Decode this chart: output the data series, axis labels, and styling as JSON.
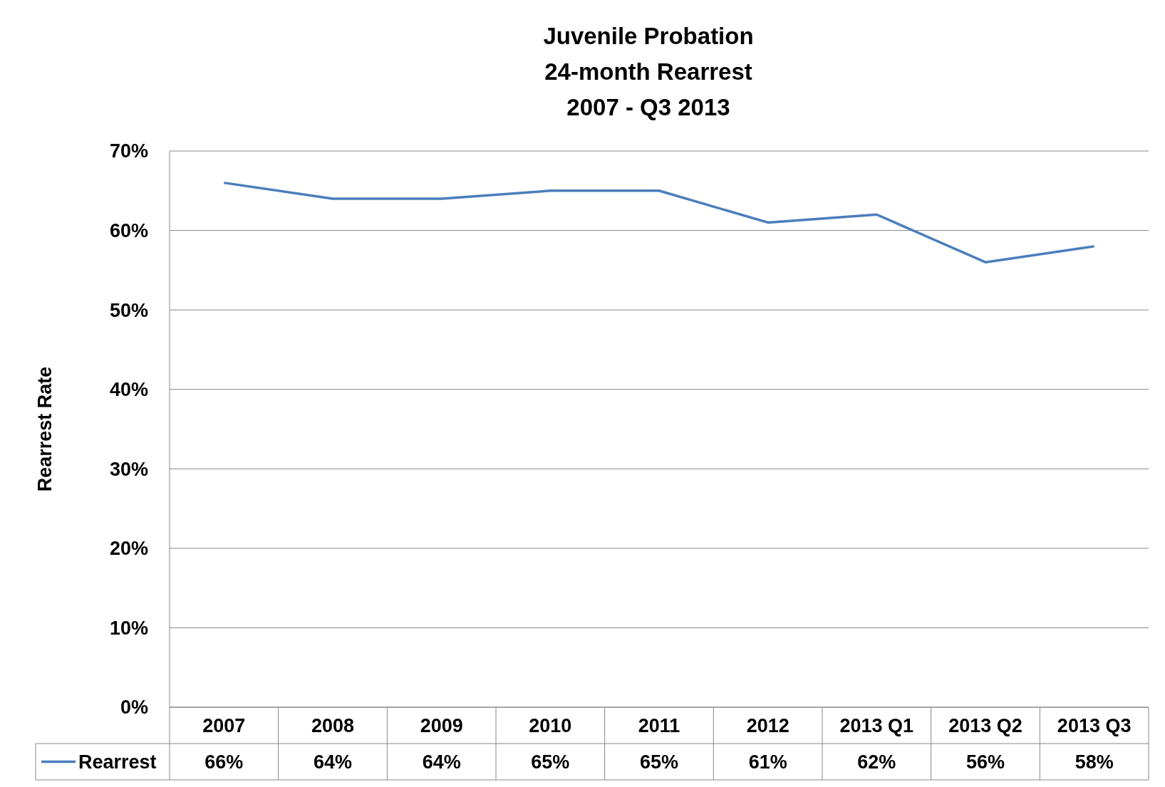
{
  "chart_data": {
    "type": "line",
    "title": "Juvenile Probation\n24-month Rearrest\n2007 - Q3 2013",
    "ylabel": "Rearrest Rate",
    "categories": [
      "2007",
      "2008",
      "2009",
      "2010",
      "2011",
      "2012",
      "2013 Q1",
      "2013 Q2",
      "2013 Q3"
    ],
    "series": [
      {
        "name": "Rearrest",
        "color": "#4a7ebb",
        "values": [
          66,
          64,
          64,
          65,
          65,
          61,
          62,
          56,
          58
        ],
        "value_labels": [
          "66%",
          "64%",
          "64%",
          "65%",
          "65%",
          "61%",
          "62%",
          "56%",
          "58%"
        ]
      }
    ],
    "ylim": [
      0,
      70
    ],
    "yticks": [
      {
        "value": 0,
        "label": "0%"
      },
      {
        "value": 10,
        "label": "10%"
      },
      {
        "value": 20,
        "label": "20%"
      },
      {
        "value": 30,
        "label": "30%"
      },
      {
        "value": 40,
        "label": "40%"
      },
      {
        "value": 50,
        "label": "50%"
      },
      {
        "value": 60,
        "label": "60%"
      },
      {
        "value": 70,
        "label": "70%"
      }
    ],
    "grid": "y",
    "legend": "bottom"
  }
}
